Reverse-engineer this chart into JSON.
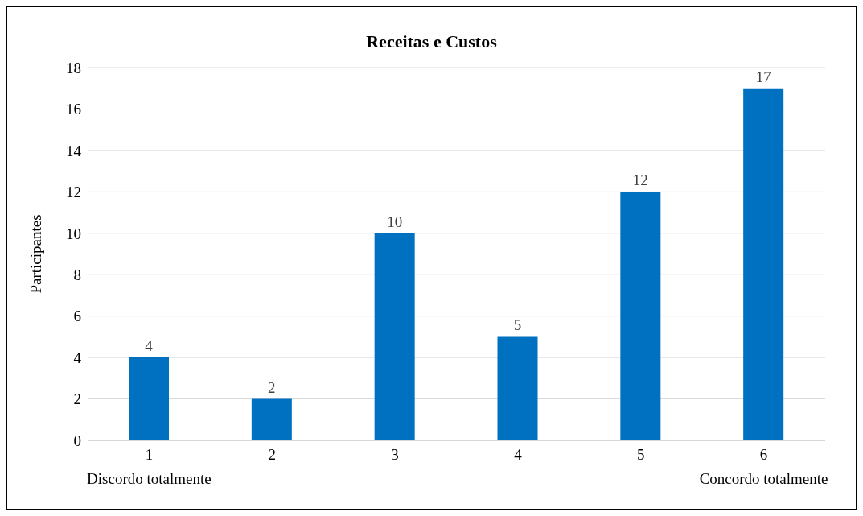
{
  "chart_data": {
    "type": "bar",
    "title": "Receitas e Custos",
    "ylabel": "Participantes",
    "categories": [
      "1\nDiscordo totalmente",
      "2",
      "3",
      "4",
      "5",
      "6\nConcordo totalmente"
    ],
    "values": [
      4,
      2,
      10,
      5,
      12,
      17
    ],
    "color": "#0070c0",
    "ylim": [
      0,
      18
    ],
    "yticks": [
      0,
      2,
      4,
      6,
      8,
      10,
      12,
      14,
      16,
      18
    ],
    "grid": "y",
    "data_labels": true
  }
}
